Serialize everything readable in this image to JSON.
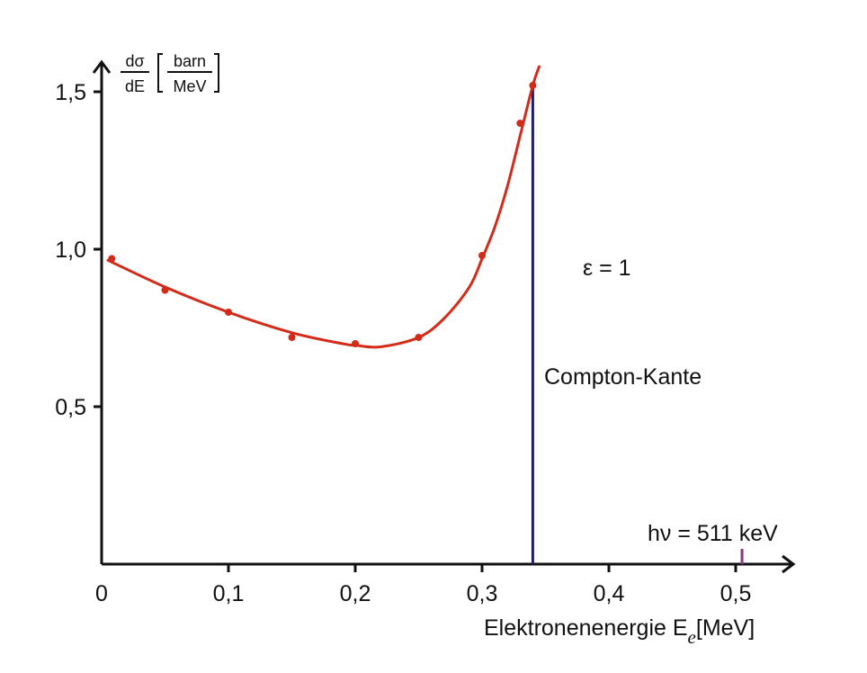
{
  "chart_data": {
    "type": "line",
    "xlabel": "Elektronenenergie E",
    "xlabel_sub": "e",
    "xlabel_unit": "[MeV]",
    "ylabel": {
      "frac_top": "dσ",
      "frac_bottom": "dE",
      "unit_top": "barn",
      "unit_bottom": "MeV"
    },
    "xlim": [
      0,
      0.55
    ],
    "ylim": [
      0,
      1.6
    ],
    "x_ticks": [
      {
        "value": 0,
        "label": "0"
      },
      {
        "value": 0.1,
        "label": "0,1"
      },
      {
        "value": 0.2,
        "label": "0,2"
      },
      {
        "value": 0.3,
        "label": "0,3"
      },
      {
        "value": 0.4,
        "label": "0,4"
      },
      {
        "value": 0.5,
        "label": "0,5"
      }
    ],
    "y_ticks": [
      {
        "value": 0.5,
        "label": "0,5"
      },
      {
        "value": 1.0,
        "label": "1,0"
      },
      {
        "value": 1.5,
        "label": "1,5"
      }
    ],
    "series": [
      {
        "x": [
          0.008,
          0.05,
          0.1,
          0.15,
          0.2,
          0.25,
          0.3,
          0.33,
          0.34
        ],
        "y": [
          0.97,
          0.87,
          0.8,
          0.72,
          0.7,
          0.72,
          0.98,
          1.4,
          1.52
        ]
      }
    ],
    "fit_curve": {
      "x": [
        0.005,
        0.05,
        0.1,
        0.15,
        0.19,
        0.2,
        0.22,
        0.25,
        0.27,
        0.29,
        0.3,
        0.31,
        0.32,
        0.33,
        0.34,
        0.345
      ],
      "y": [
        0.965,
        0.88,
        0.8,
        0.735,
        0.7,
        0.695,
        0.69,
        0.72,
        0.78,
        0.88,
        0.97,
        1.07,
        1.2,
        1.36,
        1.52,
        1.58
      ]
    },
    "compton_edge_x": 0.34,
    "photon_energy_x": 0.505,
    "annotations": {
      "epsilon": "ε = 1",
      "compton": "Compton-Kante",
      "photon": "hν = 511 keV"
    },
    "colors": {
      "curve": "#d42a1a",
      "points": "#d42a1a",
      "edge_line": "#1a1a8a",
      "photon_mark": "#8a3a7a",
      "axes": "#111111"
    },
    "grid": false
  }
}
